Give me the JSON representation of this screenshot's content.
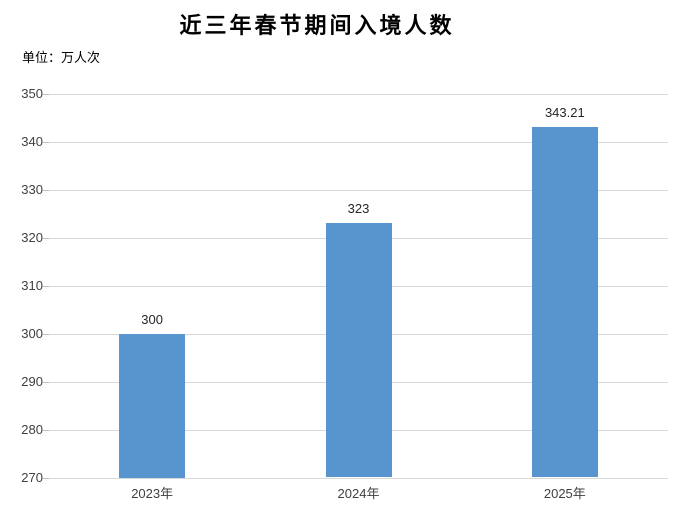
{
  "header": {
    "title": "近三年春节期间入境人数",
    "unit_label": "单位：万人次"
  },
  "chart_data": {
    "type": "bar",
    "title": "近三年春节期间入境人数",
    "unit": "万人次",
    "categories": [
      "2023年",
      "2024年",
      "2025年"
    ],
    "values": [
      300,
      323,
      343.21
    ],
    "value_labels": [
      "300",
      "323",
      "343.21"
    ],
    "ylim": [
      270,
      350
    ],
    "ytick_step": 10,
    "ytick_labels": [
      "270",
      "280",
      "290",
      "300",
      "310",
      "320",
      "330",
      "340",
      "350"
    ],
    "grid": true,
    "legend_position": "none",
    "bar_color": "#5894CE",
    "gridline_color": "#D9D9D9",
    "axis_label_color": "#404040"
  }
}
